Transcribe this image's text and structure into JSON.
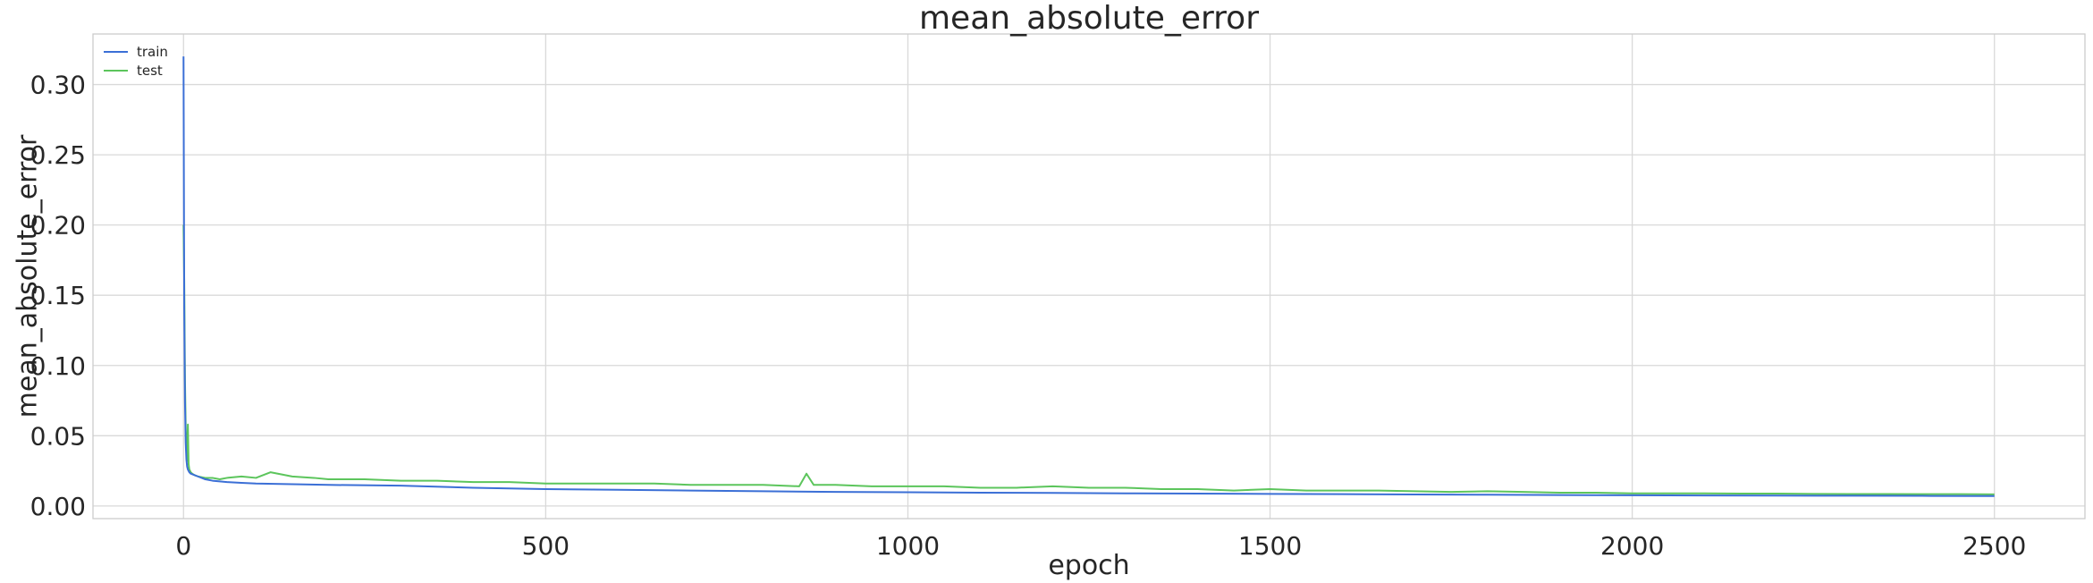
{
  "chart_data": {
    "type": "line",
    "title": "mean_absolute_error",
    "xlabel": "epoch",
    "ylabel": "mean_absolute_error",
    "xlim": [
      -125,
      2625
    ],
    "ylim": [
      -0.009,
      0.336
    ],
    "xticks": [
      0,
      500,
      1000,
      1500,
      2000,
      2500
    ],
    "yticks": [
      0.0,
      0.05,
      0.1,
      0.15,
      0.2,
      0.25,
      0.3
    ],
    "ytick_labels": [
      "0.00",
      "0.05",
      "0.10",
      "0.15",
      "0.20",
      "0.25",
      "0.30"
    ],
    "grid": true,
    "legend_position": "top-left",
    "series": [
      {
        "name": "train",
        "color": "#3b6fd6",
        "x": [
          0,
          1,
          2,
          3,
          4,
          5,
          6,
          8,
          10,
          15,
          20,
          30,
          40,
          60,
          80,
          100,
          150,
          200,
          300,
          400,
          500,
          600,
          700,
          800,
          900,
          1000,
          1100,
          1200,
          1300,
          1400,
          1500,
          1600,
          1700,
          1800,
          1900,
          2000,
          2100,
          2200,
          2300,
          2400,
          2500
        ],
        "y": [
          0.32,
          0.14,
          0.075,
          0.045,
          0.033,
          0.028,
          0.026,
          0.024,
          0.023,
          0.022,
          0.021,
          0.019,
          0.018,
          0.017,
          0.0165,
          0.016,
          0.0155,
          0.015,
          0.0145,
          0.013,
          0.012,
          0.0115,
          0.011,
          0.0105,
          0.01,
          0.0098,
          0.0095,
          0.0093,
          0.009,
          0.0088,
          0.0086,
          0.0084,
          0.0082,
          0.008,
          0.0078,
          0.0076,
          0.0075,
          0.0074,
          0.0073,
          0.0072,
          0.0071
        ]
      },
      {
        "name": "test",
        "color": "#5cc55c",
        "x": [
          0,
          1,
          2,
          3,
          4,
          5,
          6,
          7,
          8,
          10,
          12,
          15,
          20,
          30,
          40,
          50,
          60,
          80,
          100,
          120,
          150,
          180,
          200,
          250,
          300,
          350,
          400,
          450,
          500,
          550,
          600,
          650,
          700,
          750,
          800,
          850,
          860,
          870,
          900,
          950,
          1000,
          1050,
          1100,
          1150,
          1200,
          1250,
          1300,
          1350,
          1400,
          1450,
          1500,
          1550,
          1600,
          1650,
          1700,
          1750,
          1800,
          1850,
          1900,
          1950,
          2000,
          2050,
          2100,
          2150,
          2200,
          2250,
          2300,
          2350,
          2400,
          2450,
          2500
        ],
        "y": [
          0.2,
          0.16,
          0.09,
          0.057,
          0.04,
          0.032,
          0.058,
          0.03,
          0.026,
          0.024,
          0.023,
          0.022,
          0.021,
          0.02,
          0.02,
          0.019,
          0.02,
          0.021,
          0.02,
          0.024,
          0.021,
          0.02,
          0.019,
          0.019,
          0.018,
          0.018,
          0.017,
          0.017,
          0.016,
          0.016,
          0.016,
          0.016,
          0.015,
          0.015,
          0.015,
          0.014,
          0.023,
          0.015,
          0.015,
          0.014,
          0.014,
          0.014,
          0.013,
          0.013,
          0.014,
          0.013,
          0.013,
          0.012,
          0.012,
          0.011,
          0.012,
          0.011,
          0.011,
          0.011,
          0.0105,
          0.01,
          0.0105,
          0.01,
          0.0095,
          0.0095,
          0.009,
          0.009,
          0.009,
          0.0088,
          0.0088,
          0.0086,
          0.0085,
          0.0085,
          0.0084,
          0.0084,
          0.0083
        ]
      }
    ]
  }
}
